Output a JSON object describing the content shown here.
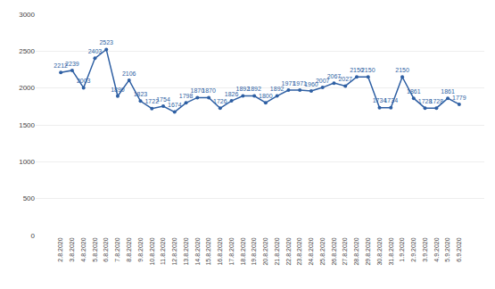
{
  "chart_data": {
    "type": "line",
    "categories": [
      "2.8.2020",
      "3.8.2020",
      "4.8.2020",
      "5.8.2020",
      "6.8.2020",
      "7.8.2020",
      "8.8.2020",
      "9.8.2020",
      "10.8.2020",
      "11.8.2020",
      "12.8.2020",
      "13.8.2020",
      "14.8.2020",
      "15.8.2020",
      "16.8.2020",
      "17.8.2020",
      "18.8.2020",
      "19.8.2020",
      "20.8.2020",
      "21.8.2020",
      "22.8.2020",
      "23.8.2020",
      "24.8.2020",
      "25.8.2020",
      "26.8.2020",
      "27.8.2020",
      "28.8.2020",
      "29.8.2020",
      "30.8.2020",
      "31.8.2020",
      "1.9.2020",
      "2.9.2020",
      "3.9.2020",
      "4.9.2020",
      "5.9.2020",
      "6.9.2020"
    ],
    "values": [
      2212,
      2239,
      2003,
      2403,
      2523,
      1890,
      2106,
      1823,
      1722,
      1754,
      1674,
      1798,
      1870,
      1870,
      1726,
      1826,
      1892,
      1892,
      1800,
      1892,
      1971,
      1971,
      1960,
      2007,
      2067,
      2027,
      2150,
      2150,
      1734,
      1734,
      2150,
      1861,
      1728,
      1728,
      1861,
      1779
    ],
    "color": "#2E5FA3",
    "marker": "circle",
    "ylim": [
      0,
      3000
    ],
    "yticks": [
      0,
      500,
      1000,
      1500,
      2000,
      2500,
      3000
    ],
    "grid": true,
    "data_labels": true
  }
}
